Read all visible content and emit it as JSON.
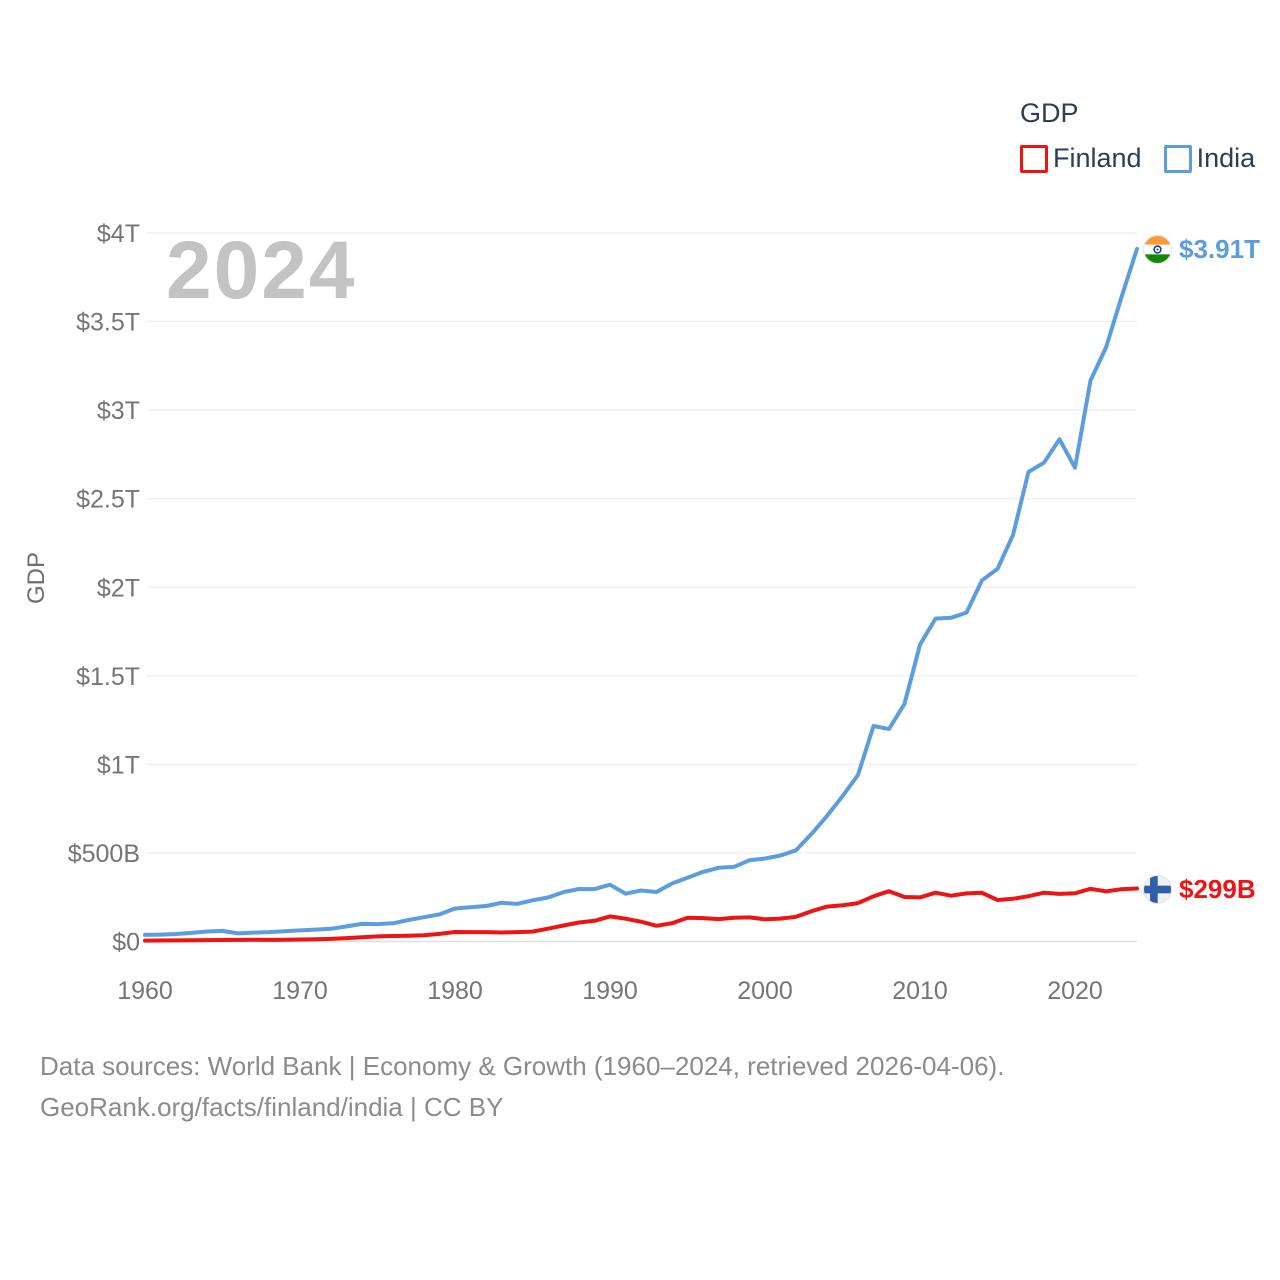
{
  "watermark": "2024",
  "legend": {
    "title": "GDP",
    "items": [
      {
        "label": "Finland"
      },
      {
        "label": "India"
      }
    ]
  },
  "end_labels": {
    "finland": "$299B",
    "india": "$3.91T"
  },
  "footer": {
    "line1": "Data sources: World Bank | Economy & Growth (1960–2024, retrieved 2026-04-06).",
    "line2": "GeoRank.org/facts/finland/india | CC BY"
  },
  "chart_data": {
    "type": "line",
    "title": "GDP",
    "ylabel": "GDP",
    "unit": "billion USD",
    "xlim": [
      1960,
      2024
    ],
    "ylim": [
      0,
      4000
    ],
    "grid": true,
    "legend_position": "top-right",
    "x": [
      1960,
      1961,
      1962,
      1963,
      1964,
      1965,
      1966,
      1967,
      1968,
      1969,
      1970,
      1971,
      1972,
      1973,
      1974,
      1975,
      1976,
      1977,
      1978,
      1979,
      1980,
      1981,
      1982,
      1983,
      1984,
      1985,
      1986,
      1987,
      1988,
      1989,
      1990,
      1991,
      1992,
      1993,
      1994,
      1995,
      1996,
      1997,
      1998,
      1999,
      2000,
      2001,
      2002,
      2003,
      2004,
      2005,
      2006,
      2007,
      2008,
      2009,
      2010,
      2011,
      2012,
      2013,
      2014,
      2015,
      2016,
      2017,
      2018,
      2019,
      2020,
      2021,
      2022,
      2023,
      2024
    ],
    "y_ticks": {
      "values": [
        0,
        500,
        1000,
        1500,
        2000,
        2500,
        3000,
        3500,
        4000
      ],
      "labels": [
        "$0",
        "$500B",
        "$1T",
        "$1.5T",
        "$2T",
        "$2.5T",
        "$3T",
        "$3.5T",
        "$4T"
      ]
    },
    "x_ticks": {
      "values": [
        1960,
        1970,
        1980,
        1990,
        2000,
        2010,
        2020
      ],
      "labels": [
        "1960",
        "1970",
        "1980",
        "1990",
        "2000",
        "2010",
        "2020"
      ]
    },
    "series": [
      {
        "name": "Finland",
        "color": "#ee1414",
        "end_label": "$299B",
        "values": [
          5.2,
          5.9,
          6.3,
          6.9,
          7.8,
          8.6,
          9.2,
          9.4,
          9.0,
          10.0,
          11.4,
          12.5,
          14.4,
          19.0,
          23.7,
          29.0,
          30.9,
          32.2,
          35.0,
          43.0,
          53.7,
          52.8,
          53.3,
          51.0,
          53.3,
          55.8,
          72.0,
          90.1,
          107.1,
          117.1,
          141.7,
          128.9,
          112.0,
          88.8,
          103.2,
          134.2,
          132.1,
          126.7,
          134.0,
          135.9,
          125.5,
          129.3,
          139.6,
          171.1,
          196.8,
          204.4,
          216.6,
          255.4,
          283.7,
          251.5,
          249.2,
          275.6,
          258.3,
          271.4,
          274.9,
          234.5,
          240.8,
          255.6,
          275.7,
          268.5,
          271.9,
          297.3,
          282.6,
          295.5,
          299.0
        ]
      },
      {
        "name": "India",
        "color": "#5c9de0",
        "end_label": "$3.91T",
        "values": [
          37.0,
          39.2,
          42.2,
          48.4,
          56.5,
          59.6,
          45.9,
          50.1,
          53.1,
          58.4,
          62.4,
          67.4,
          71.5,
          85.5,
          99.5,
          98.5,
          102.7,
          121.5,
          137.3,
          152.8,
          186.3,
          193.5,
          200.7,
          218.3,
          212.2,
          232.5,
          248.2,
          279.0,
          296.6,
          296.0,
          320.9,
          270.1,
          288.2,
          279.3,
          327.3,
          360.3,
          392.9,
          415.9,
          421.4,
          458.8,
          468.4,
          485.4,
          514.9,
          607.7,
          709.1,
          820.4,
          940.3,
          1216.7,
          1198.9,
          1341.9,
          1675.6,
          1823.1,
          1827.6,
          1856.7,
          2039.1,
          2103.6,
          2294.8,
          2651.5,
          2702.9,
          2835.6,
          2674.9,
          3167.3,
          3353.5,
          3638.0,
          3910.0
        ]
      }
    ]
  }
}
